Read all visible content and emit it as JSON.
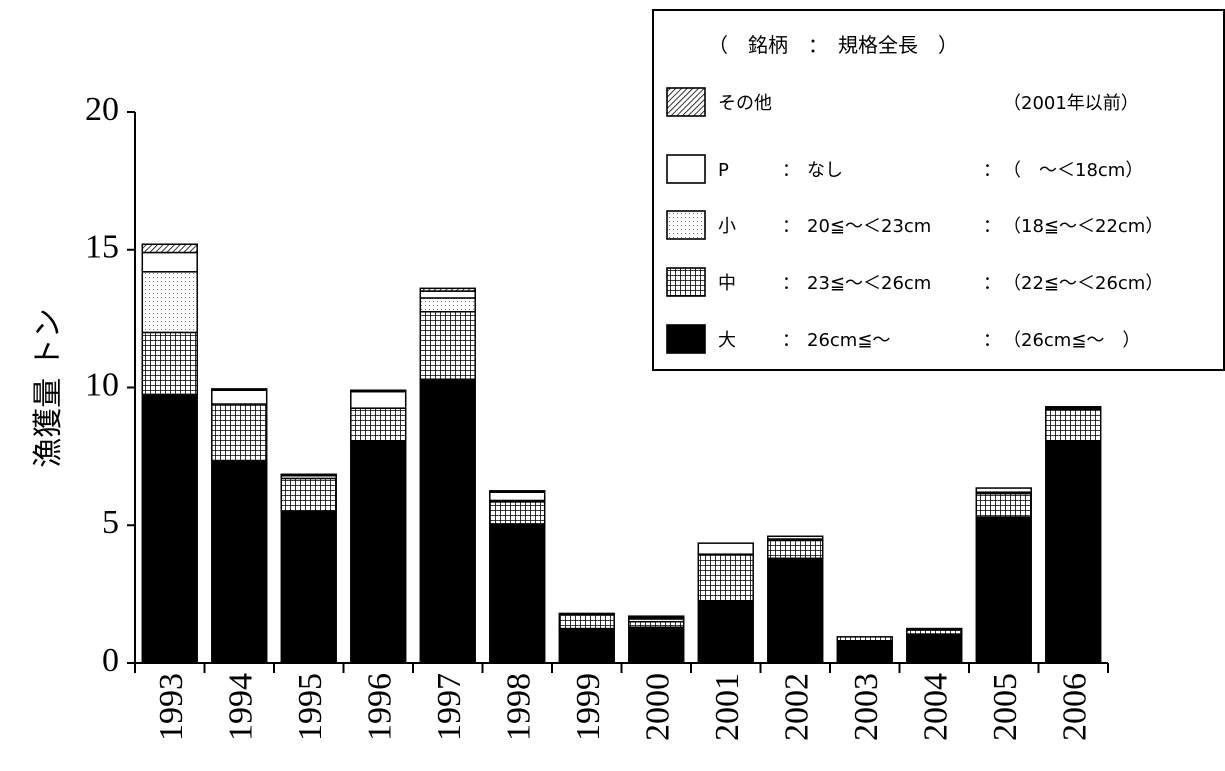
{
  "chart_data": {
    "type": "bar",
    "stacked": true,
    "categories": [
      "1993",
      "1994",
      "1995",
      "1996",
      "1997",
      "1998",
      "1999",
      "2000",
      "2001",
      "2002",
      "2003",
      "2004",
      "2005",
      "2006"
    ],
    "series": [
      {
        "name": "大",
        "pattern": "solid",
        "values": [
          9.75,
          7.35,
          5.5,
          8.05,
          10.3,
          5.05,
          1.25,
          1.3,
          2.25,
          3.8,
          0.8,
          1.05,
          5.3,
          8.05
        ]
      },
      {
        "name": "中",
        "pattern": "grid",
        "values": [
          2.25,
          2.05,
          1.2,
          1.2,
          2.45,
          0.8,
          0.5,
          0.2,
          1.7,
          0.65,
          0.15,
          0.15,
          0.85,
          1.15
        ]
      },
      {
        "name": "小",
        "pattern": "dots",
        "values": [
          2.2,
          0.0,
          0.0,
          0.0,
          0.5,
          0.05,
          0.0,
          0.1,
          0.0,
          0.05,
          0.0,
          0.05,
          0.05,
          0.05
        ]
      },
      {
        "name": "P",
        "pattern": "white",
        "values": [
          0.7,
          0.5,
          0.1,
          0.6,
          0.25,
          0.3,
          0.0,
          0.05,
          0.4,
          0.1,
          0.0,
          0.0,
          0.15,
          0.0
        ]
      },
      {
        "name": "その他",
        "pattern": "hatch",
        "values": [
          0.3,
          0.05,
          0.05,
          0.05,
          0.1,
          0.05,
          0.05,
          0.05,
          0.0,
          0.0,
          0.0,
          0.0,
          0.0,
          0.05
        ]
      }
    ],
    "ylabel": "漁獲量 トン",
    "yticks": [
      "0",
      "5",
      "10",
      "15",
      "20"
    ],
    "ylim": [
      0,
      20
    ],
    "grid": false,
    "legend_position": "top-right"
  },
  "legend": {
    "title": "（　銘柄　：　規格全長　）",
    "rows": [
      {
        "swatch": "hatch",
        "name": "その他",
        "colon1": "",
        "spec": "",
        "colon2": "",
        "old": "（2001年以前）"
      },
      {
        "swatch": "white",
        "name": "P",
        "colon1": "：",
        "spec": "なし",
        "colon2": "：",
        "old": "（　～＜18cm）"
      },
      {
        "swatch": "dots",
        "name": "小",
        "colon1": "：",
        "spec": "20≦～＜23cm",
        "colon2": "：",
        "old": "（18≦～＜22cm）"
      },
      {
        "swatch": "grid",
        "name": "中",
        "colon1": "：",
        "spec": "23≦～＜26cm",
        "colon2": "：",
        "old": "（22≦～＜26cm）"
      },
      {
        "swatch": "solid",
        "name": "大",
        "colon1": "：",
        "spec": "26cm≦～",
        "colon2": "：",
        "old": "（26cm≦～　）"
      }
    ]
  }
}
